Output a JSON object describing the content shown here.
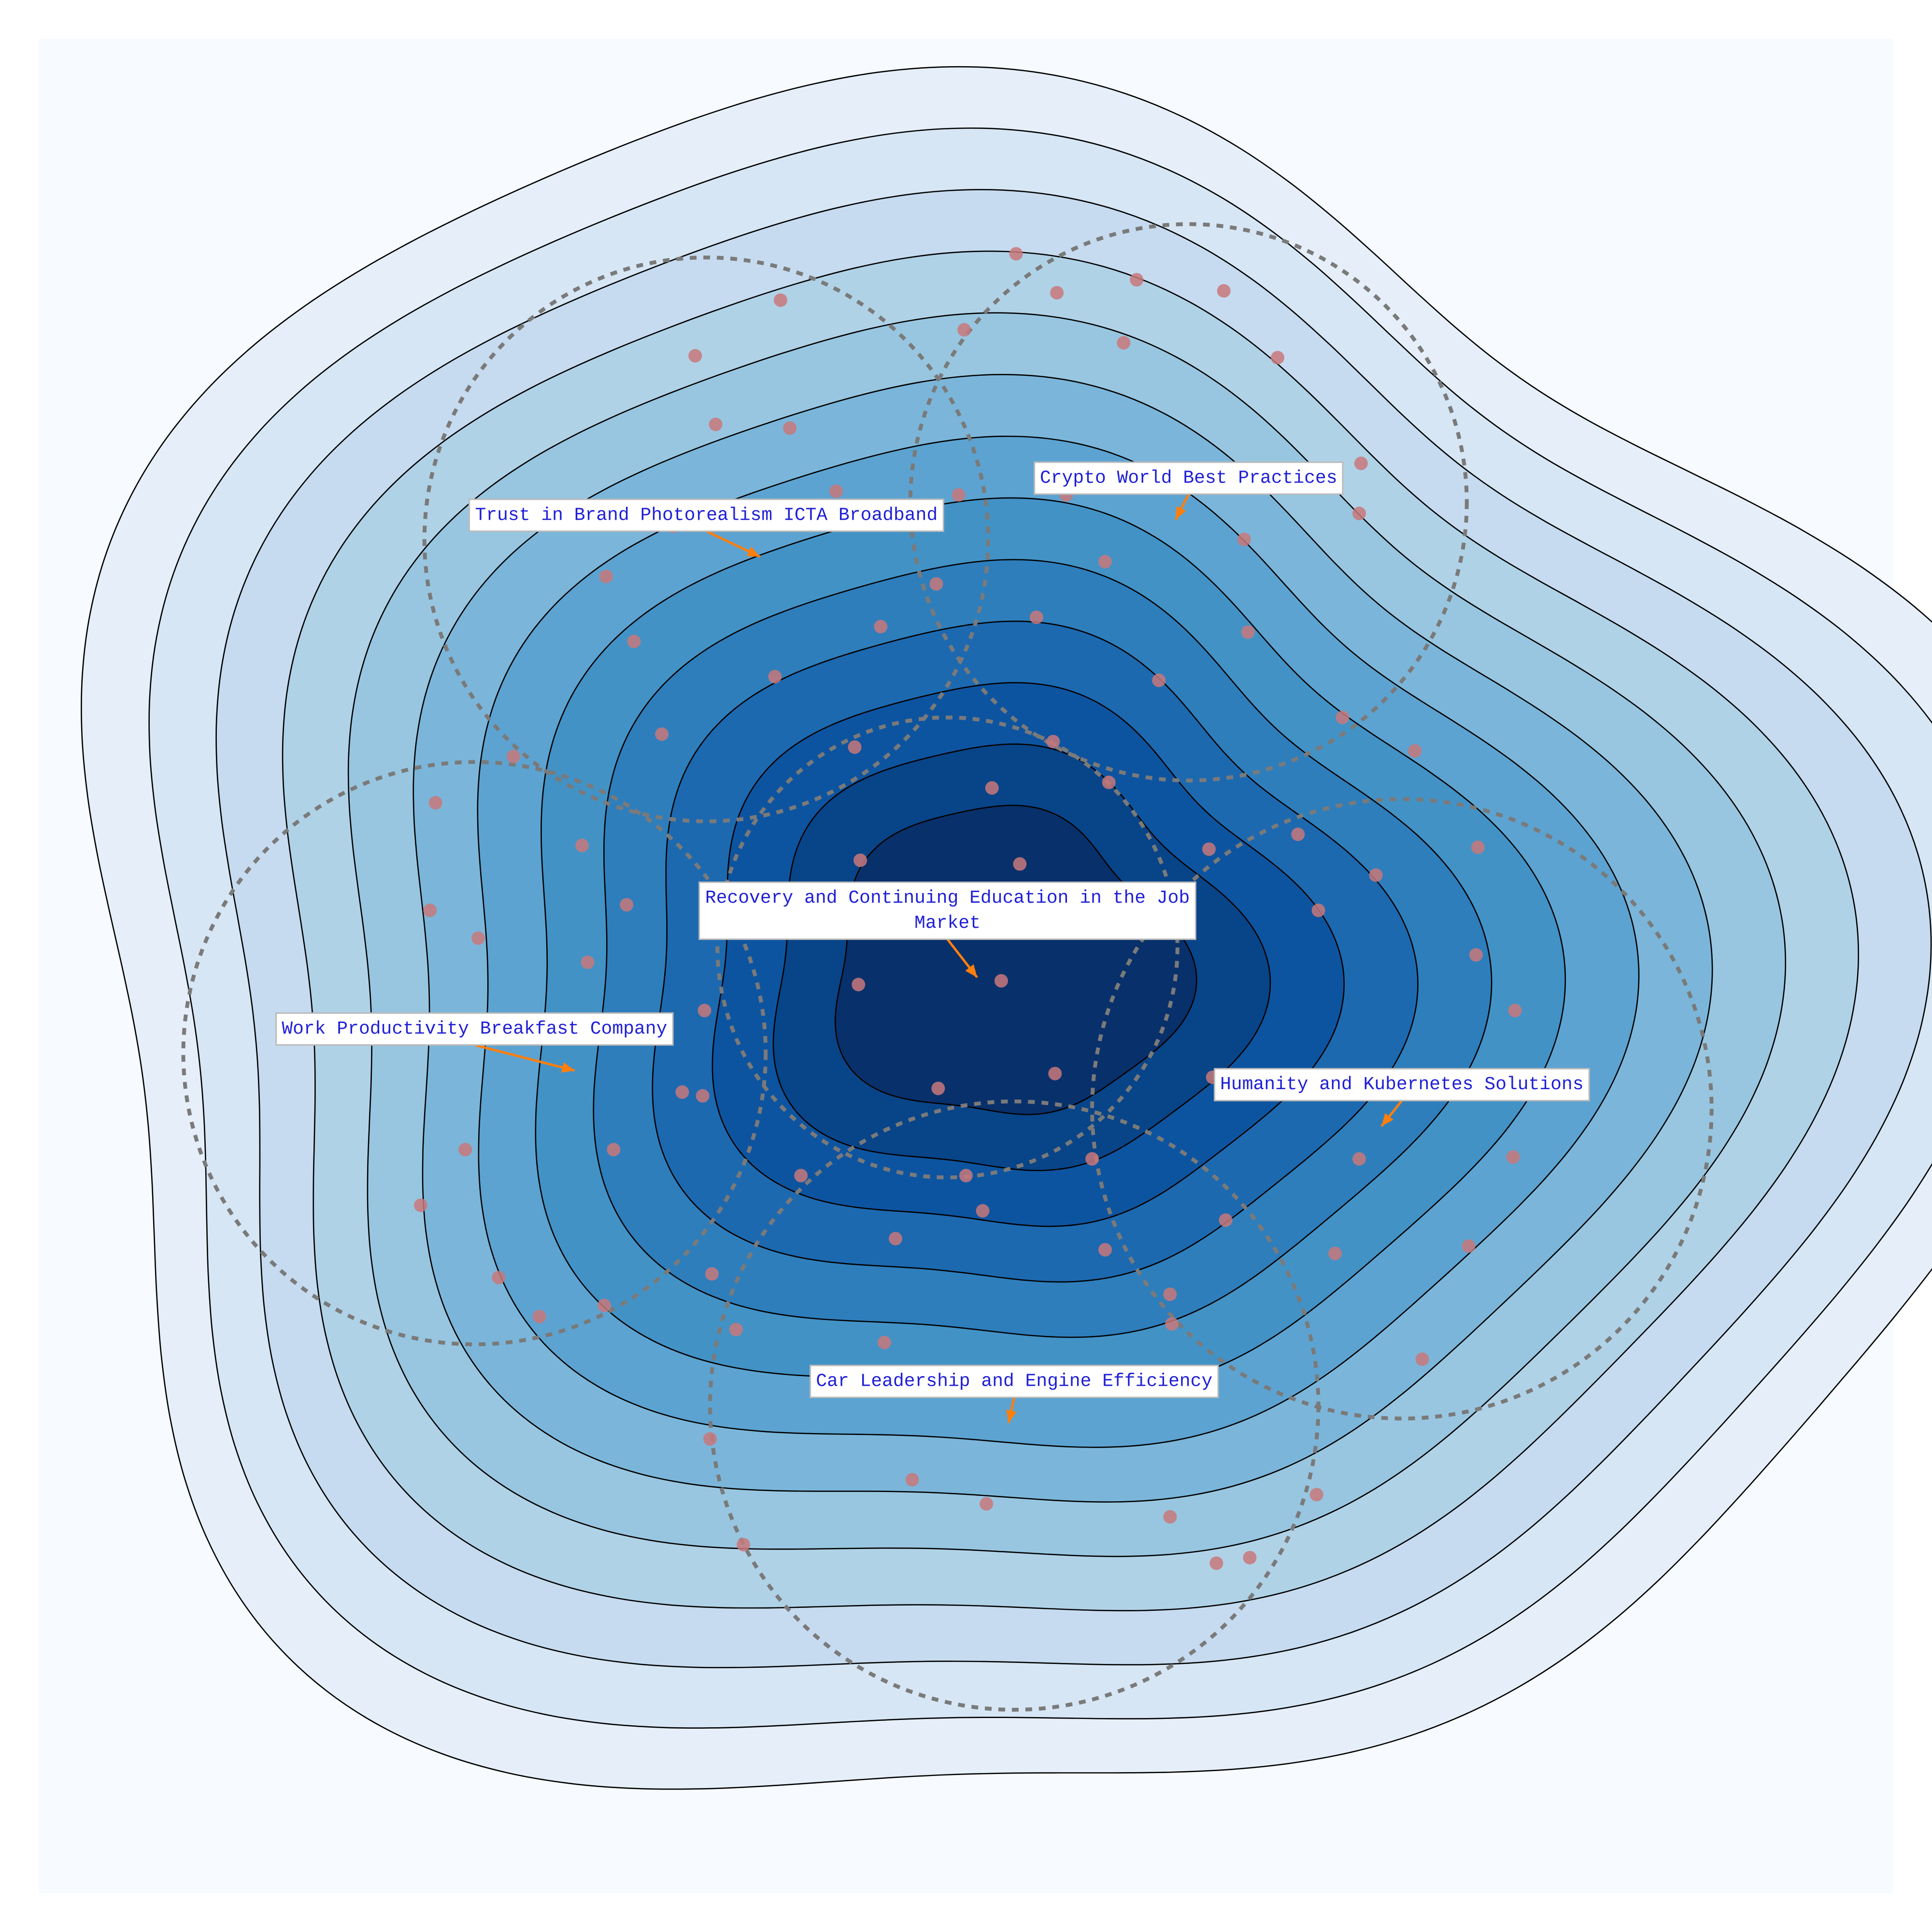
{
  "chart_data": {
    "type": "contour",
    "title": "",
    "xlabel": "",
    "ylabel": "",
    "xlim": [
      0,
      100
    ],
    "ylim": [
      0,
      100
    ],
    "grid": false,
    "legend": "none",
    "colors": {
      "background": "#f7fbff",
      "contour_levels": [
        "#e6eff9",
        "#d6e6f4",
        "#c6dbef",
        "#b0d2e7",
        "#98c6e0",
        "#7bb6da",
        "#5ca3d1",
        "#4292c6",
        "#2e7ebc",
        "#1c69b0",
        "#0d54a0",
        "#084488",
        "#08306b"
      ],
      "contour_line": "#000000",
      "cluster_ring": "#7a7a7a",
      "point": "#c8787a",
      "label_text": "#1f1fd6",
      "label_border": "#bbbbbb",
      "arrow": "#ff7f0e"
    },
    "contour_levels": 13,
    "density_peak": {
      "x": 52.0,
      "y": 50.0
    },
    "clusters": [
      {
        "label": "Trust in Brand Photorealism ICTA Broadband",
        "center": {
          "x": 36.0,
          "y": 73.0
        },
        "radius": 15.2,
        "arrow_to": {
          "x": 38.9,
          "y": 73.0
        }
      },
      {
        "label": "Crypto World Best Practices",
        "center": {
          "x": 62.0,
          "y": 75.0
        },
        "radius": 15.0,
        "arrow_to": {
          "x": 61.3,
          "y": 76.0
        }
      },
      {
        "label": "Recovery and Continuing Education in the Job Market",
        "center": {
          "x": 49.0,
          "y": 51.0
        },
        "radius": 12.4,
        "arrow_to": {
          "x": 50.6,
          "y": 53.4
        }
      },
      {
        "label": "Work Productivity Breakfast Company",
        "center": {
          "x": 23.5,
          "y": 45.3
        },
        "radius": 15.7,
        "arrow_to": {
          "x": 28.9,
          "y": 45.3
        }
      },
      {
        "label": "Humanity and Kubernetes Solutions",
        "center": {
          "x": 73.5,
          "y": 42.3
        },
        "radius": 16.7,
        "arrow_to": {
          "x": 72.4,
          "y": 46.2
        }
      },
      {
        "label": "Car Leadership and Engine Efficiency",
        "center": {
          "x": 52.6,
          "y": 26.3
        },
        "radius": 16.4,
        "arrow_to": {
          "x": 52.3,
          "y": 27.1
        }
      }
    ],
    "points": [
      {
        "x": 52.7,
        "y": 88.4
      },
      {
        "x": 59.2,
        "y": 87.0
      },
      {
        "x": 54.9,
        "y": 86.3
      },
      {
        "x": 63.9,
        "y": 86.4
      },
      {
        "x": 49.9,
        "y": 84.3
      },
      {
        "x": 58.5,
        "y": 83.6
      },
      {
        "x": 66.8,
        "y": 82.8
      },
      {
        "x": 71.3,
        "y": 77.1
      },
      {
        "x": 65.0,
        "y": 73.0
      },
      {
        "x": 71.2,
        "y": 74.4
      },
      {
        "x": 55.4,
        "y": 75.4
      },
      {
        "x": 49.6,
        "y": 75.4
      },
      {
        "x": 57.5,
        "y": 71.8
      },
      {
        "x": 53.8,
        "y": 68.8
      },
      {
        "x": 65.2,
        "y": 68.0
      },
      {
        "x": 60.4,
        "y": 65.4
      },
      {
        "x": 70.3,
        "y": 63.4
      },
      {
        "x": 48.4,
        "y": 70.6
      },
      {
        "x": 40.0,
        "y": 85.9
      },
      {
        "x": 35.4,
        "y": 82.9
      },
      {
        "x": 36.5,
        "y": 79.2
      },
      {
        "x": 40.5,
        "y": 79.0
      },
      {
        "x": 43.0,
        "y": 75.6
      },
      {
        "x": 39.3,
        "y": 74.3
      },
      {
        "x": 34.2,
        "y": 73.7
      },
      {
        "x": 30.6,
        "y": 71.0
      },
      {
        "x": 32.1,
        "y": 67.5
      },
      {
        "x": 45.4,
        "y": 68.3
      },
      {
        "x": 39.7,
        "y": 65.6
      },
      {
        "x": 33.6,
        "y": 62.5
      },
      {
        "x": 44.0,
        "y": 61.8
      },
      {
        "x": 54.7,
        "y": 62.1
      },
      {
        "x": 51.4,
        "y": 59.6
      },
      {
        "x": 57.7,
        "y": 59.9
      },
      {
        "x": 44.3,
        "y": 55.7
      },
      {
        "x": 52.9,
        "y": 55.5
      },
      {
        "x": 63.1,
        "y": 56.3
      },
      {
        "x": 67.9,
        "y": 57.1
      },
      {
        "x": 48.7,
        "y": 52.5
      },
      {
        "x": 58.3,
        "y": 52.2
      },
      {
        "x": 37.3,
        "y": 52.3
      },
      {
        "x": 44.2,
        "y": 49.0
      },
      {
        "x": 51.9,
        "y": 49.2
      },
      {
        "x": 48.5,
        "y": 43.4
      },
      {
        "x": 54.8,
        "y": 44.2
      },
      {
        "x": 25.6,
        "y": 61.3
      },
      {
        "x": 21.4,
        "y": 58.8
      },
      {
        "x": 29.3,
        "y": 56.5
      },
      {
        "x": 31.7,
        "y": 53.3
      },
      {
        "x": 21.1,
        "y": 53.0
      },
      {
        "x": 23.7,
        "y": 51.5
      },
      {
        "x": 29.6,
        "y": 50.2
      },
      {
        "x": 35.9,
        "y": 47.6
      },
      {
        "x": 23.9,
        "y": 46.5
      },
      {
        "x": 34.7,
        "y": 43.2
      },
      {
        "x": 35.8,
        "y": 43.0
      },
      {
        "x": 23.0,
        "y": 40.1
      },
      {
        "x": 31.0,
        "y": 40.1
      },
      {
        "x": 20.6,
        "y": 37.1
      },
      {
        "x": 24.8,
        "y": 33.2
      },
      {
        "x": 27.0,
        "y": 31.1
      },
      {
        "x": 74.2,
        "y": 61.6
      },
      {
        "x": 77.6,
        "y": 56.4
      },
      {
        "x": 72.1,
        "y": 54.9
      },
      {
        "x": 69.0,
        "y": 53.0
      },
      {
        "x": 77.5,
        "y": 50.6
      },
      {
        "x": 79.6,
        "y": 47.6
      },
      {
        "x": 63.3,
        "y": 44.0
      },
      {
        "x": 71.2,
        "y": 39.6
      },
      {
        "x": 79.5,
        "y": 39.7
      },
      {
        "x": 64.0,
        "y": 36.3
      },
      {
        "x": 69.9,
        "y": 34.5
      },
      {
        "x": 77.1,
        "y": 34.9
      },
      {
        "x": 61.0,
        "y": 32.3
      },
      {
        "x": 74.6,
        "y": 28.8
      },
      {
        "x": 56.8,
        "y": 39.6
      },
      {
        "x": 50.0,
        "y": 38.7
      },
      {
        "x": 41.1,
        "y": 38.7
      },
      {
        "x": 50.9,
        "y": 36.8
      },
      {
        "x": 46.2,
        "y": 35.3
      },
      {
        "x": 57.5,
        "y": 34.7
      },
      {
        "x": 36.3,
        "y": 33.4
      },
      {
        "x": 30.5,
        "y": 31.7
      },
      {
        "x": 37.6,
        "y": 30.4
      },
      {
        "x": 45.6,
        "y": 29.7
      },
      {
        "x": 61.1,
        "y": 30.7
      },
      {
        "x": 48.4,
        "y": 27.7
      },
      {
        "x": 36.2,
        "y": 24.5
      },
      {
        "x": 47.1,
        "y": 22.3
      },
      {
        "x": 51.1,
        "y": 21.0
      },
      {
        "x": 68.9,
        "y": 21.5
      },
      {
        "x": 61.0,
        "y": 20.3
      },
      {
        "x": 38.0,
        "y": 18.8
      },
      {
        "x": 65.3,
        "y": 18.1
      },
      {
        "x": 63.5,
        "y": 17.8
      }
    ]
  }
}
